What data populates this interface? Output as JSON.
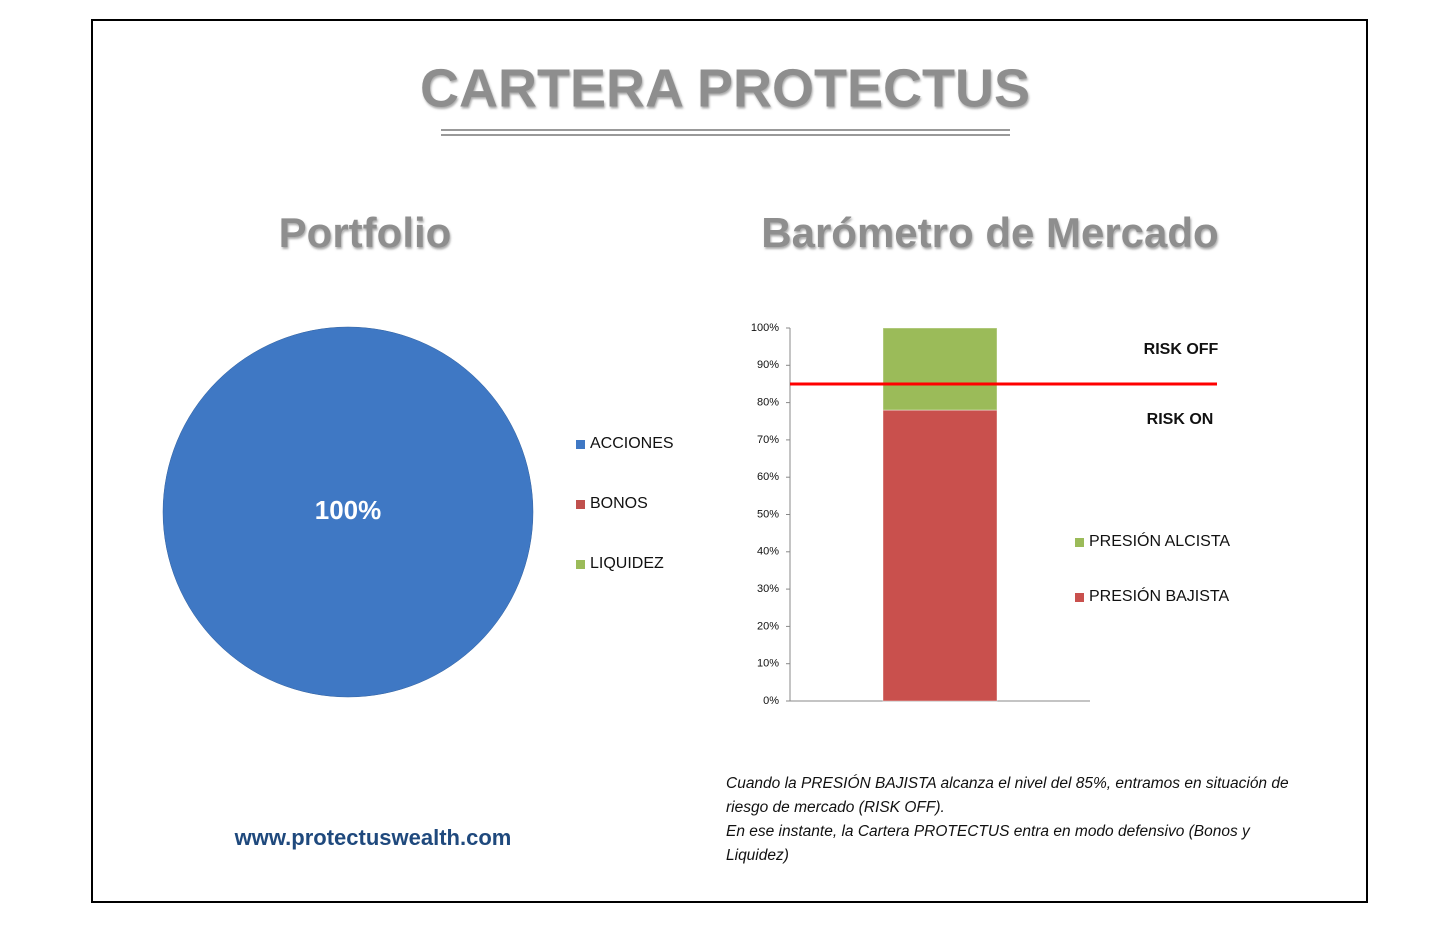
{
  "title": "CARTERA PROTECTUS",
  "website": "www.protectuswealth.com",
  "note": [
    "Cuando la PRESIÓN BAJISTA alcanza el nivel del 85%, entramos en situación de riesgo de mercado (RISK OFF).",
    "En ese instante, la Cartera PROTECTUS entra en modo defensivo (Bonos y Liquidez)"
  ],
  "chart_data": [
    {
      "type": "pie",
      "title": "Portfolio",
      "categories": [
        "ACCIONES",
        "BONOS",
        "LIQUIDEZ"
      ],
      "values": [
        100,
        0,
        0
      ],
      "value_labels": [
        "100%",
        null,
        null
      ],
      "colors": [
        "#3f78c4",
        "#c0504d",
        "#9bbb59"
      ]
    },
    {
      "type": "stacked-bar",
      "title": "Barómetro de Mercado",
      "categories": [
        null
      ],
      "series": [
        {
          "name": "PRESIÓN BAJISTA",
          "color": "#c9504d",
          "values": [
            78
          ]
        },
        {
          "name": "PRESIÓN ALCISTA",
          "color": "#9bbb59",
          "values": [
            22
          ]
        }
      ],
      "ylim": [
        0,
        100
      ],
      "yticks": [
        {
          "value": 0,
          "label": "0%"
        },
        {
          "value": 10,
          "label": "10%"
        },
        {
          "value": 20,
          "label": "20%"
        },
        {
          "value": 30,
          "label": "30%"
        },
        {
          "value": 40,
          "label": "40%"
        },
        {
          "value": 50,
          "label": "50%"
        },
        {
          "value": 60,
          "label": "60%"
        },
        {
          "value": 70,
          "label": "70%"
        },
        {
          "value": 80,
          "label": "80%"
        },
        {
          "value": 90,
          "label": "90%"
        },
        {
          "value": 100,
          "label": "100%"
        }
      ],
      "threshold": {
        "value": 85,
        "color": "#ff0000"
      },
      "annotations": [
        "RISK OFF",
        "RISK ON"
      ]
    }
  ]
}
